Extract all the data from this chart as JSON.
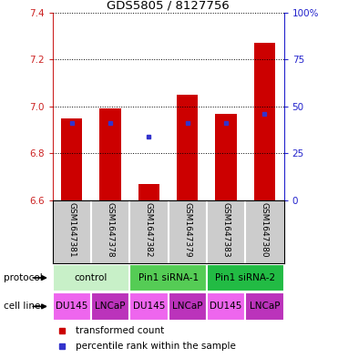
{
  "title": "GDS5805 / 8127756",
  "samples": [
    "GSM1647381",
    "GSM1647378",
    "GSM1647382",
    "GSM1647379",
    "GSM1647383",
    "GSM1647380"
  ],
  "bar_values": [
    6.95,
    6.99,
    6.67,
    7.05,
    6.97,
    7.27
  ],
  "bar_bottom": 6.6,
  "percentile_values": [
    6.93,
    6.93,
    6.87,
    6.93,
    6.93,
    6.97
  ],
  "bar_color": "#cc0000",
  "blue_color": "#3333cc",
  "ylim": [
    6.6,
    7.4
  ],
  "yticks": [
    6.6,
    6.8,
    7.0,
    7.2,
    7.4
  ],
  "y2ticks_pct": [
    0,
    25,
    50,
    75,
    100
  ],
  "protocols": [
    {
      "label": "control",
      "span": [
        0,
        2
      ],
      "color": "#c8f0c8"
    },
    {
      "label": "Pin1 siRNA-1",
      "span": [
        2,
        4
      ],
      "color": "#55cc55"
    },
    {
      "label": "Pin1 siRNA-2",
      "span": [
        4,
        6
      ],
      "color": "#22bb44"
    }
  ],
  "cell_lines": [
    {
      "label": "DU145",
      "span": [
        0,
        1
      ],
      "color": "#ee66ee"
    },
    {
      "label": "LNCaP",
      "span": [
        1,
        2
      ],
      "color": "#bb33bb"
    },
    {
      "label": "DU145",
      "span": [
        2,
        3
      ],
      "color": "#ee66ee"
    },
    {
      "label": "LNCaP",
      "span": [
        3,
        4
      ],
      "color": "#bb33bb"
    },
    {
      "label": "DU145",
      "span": [
        4,
        5
      ],
      "color": "#ee66ee"
    },
    {
      "label": "LNCaP",
      "span": [
        5,
        6
      ],
      "color": "#bb33bb"
    }
  ],
  "sample_box_color": "#cccccc",
  "legend_red": "transformed count",
  "legend_blue": "percentile rank within the sample",
  "protocol_label": "protocol",
  "cell_line_label": "cell line",
  "left_axis_color": "#cc2222",
  "right_axis_color": "#2222cc"
}
